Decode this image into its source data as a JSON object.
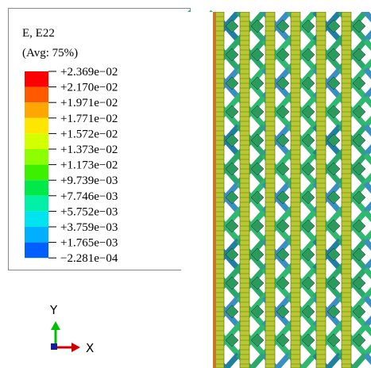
{
  "legend": {
    "title": "E, E22",
    "subtitle": "(Avg: 75%)",
    "labels": [
      "+2.369e−02",
      "+2.170e−02",
      "+1.971e−02",
      "+1.771e−02",
      "+1.572e−02",
      "+1.373e−02",
      "+1.173e−02",
      "+9.739e−03",
      "+7.746e−03",
      "+5.752e−03",
      "+3.759e−03",
      "+1.765e−03",
      "−2.281e−04"
    ],
    "colors": [
      "#ff0000",
      "#ff5a00",
      "#ffa600",
      "#ffe600",
      "#d4ff00",
      "#8cff00",
      "#3cf000",
      "#00e84a",
      "#00f0a8",
      "#00e4f0",
      "#00b0ff",
      "#0060ff"
    ]
  },
  "triad": {
    "y_label": "Y",
    "x_label": "X"
  }
}
